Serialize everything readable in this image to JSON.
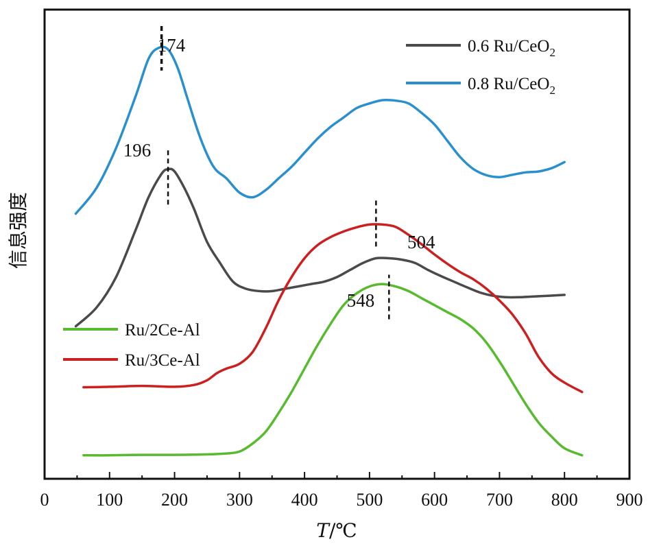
{
  "chart_data": {
    "type": "line",
    "xlabel": "T/℃",
    "ylabel": "信息强度",
    "xlim": [
      0,
      900
    ],
    "xticks": [
      0,
      100,
      200,
      300,
      400,
      500,
      600,
      700,
      800,
      900
    ],
    "y_ticks_shown": false,
    "grid": false,
    "legends": [
      {
        "placement": "top-right",
        "entries": [
          "0.6 Ru/CeO2",
          "0.8 Ru/CeO2"
        ]
      },
      {
        "placement": "center-left",
        "entries": [
          "Ru/2Ce-Al",
          "Ru/3Ce-Al"
        ]
      }
    ],
    "series": [
      {
        "name": "0.8 Ru/CeO2",
        "color": "#2a8fcf",
        "x": [
          48,
          80,
          110,
          140,
          160,
          175,
          190,
          205,
          220,
          240,
          260,
          280,
          300,
          320,
          340,
          360,
          380,
          400,
          420,
          440,
          460,
          480,
          500,
          520,
          540,
          560,
          580,
          600,
          620,
          640,
          660,
          680,
          700,
          720,
          740,
          760,
          780,
          800
        ],
        "y": [
          0.565,
          0.62,
          0.705,
          0.815,
          0.895,
          0.918,
          0.915,
          0.875,
          0.81,
          0.725,
          0.665,
          0.64,
          0.61,
          0.6,
          0.615,
          0.64,
          0.665,
          0.695,
          0.725,
          0.75,
          0.77,
          0.79,
          0.8,
          0.807,
          0.806,
          0.8,
          0.78,
          0.755,
          0.72,
          0.685,
          0.66,
          0.647,
          0.643,
          0.648,
          0.653,
          0.655,
          0.662,
          0.675
        ]
      },
      {
        "name": "0.6 Ru/CeO2",
        "color": "#4a4a4a",
        "x": [
          48,
          80,
          110,
          140,
          160,
          180,
          190,
          200,
          215,
          230,
          250,
          270,
          290,
          310,
          330,
          350,
          370,
          390,
          410,
          430,
          450,
          470,
          490,
          510,
          530,
          550,
          570,
          590,
          610,
          630,
          650,
          670,
          690,
          710,
          730,
          760,
          800
        ],
        "y": [
          0.325,
          0.365,
          0.43,
          0.53,
          0.6,
          0.65,
          0.66,
          0.655,
          0.62,
          0.575,
          0.505,
          0.46,
          0.42,
          0.405,
          0.4,
          0.4,
          0.405,
          0.41,
          0.415,
          0.42,
          0.43,
          0.445,
          0.46,
          0.47,
          0.47,
          0.467,
          0.46,
          0.445,
          0.432,
          0.42,
          0.408,
          0.397,
          0.39,
          0.387,
          0.387,
          0.389,
          0.392
        ]
      },
      {
        "name": "Ru/3Ce-Al",
        "color": "#cc1f1f",
        "x": [
          60,
          100,
          150,
          200,
          230,
          250,
          265,
          280,
          300,
          320,
          340,
          360,
          380,
          400,
          420,
          440,
          460,
          480,
          500,
          520,
          540,
          560,
          580,
          600,
          620,
          640,
          660,
          680,
          700,
          720,
          740,
          760,
          780,
          800,
          827
        ],
        "y": [
          0.195,
          0.196,
          0.198,
          0.196,
          0.2,
          0.21,
          0.225,
          0.235,
          0.245,
          0.27,
          0.32,
          0.38,
          0.43,
          0.47,
          0.498,
          0.515,
          0.527,
          0.536,
          0.542,
          0.542,
          0.537,
          0.52,
          0.5,
          0.478,
          0.458,
          0.44,
          0.425,
          0.405,
          0.38,
          0.35,
          0.31,
          0.26,
          0.225,
          0.205,
          0.185
        ]
      },
      {
        "name": "Ru/2Ce-Al",
        "color": "#58ba2e",
        "x": [
          60,
          100,
          150,
          200,
          250,
          280,
          300,
          320,
          340,
          360,
          380,
          400,
          420,
          440,
          460,
          480,
          500,
          520,
          540,
          560,
          580,
          600,
          620,
          640,
          660,
          680,
          700,
          720,
          740,
          760,
          780,
          800,
          827
        ],
        "y": [
          0.05,
          0.05,
          0.051,
          0.051,
          0.052,
          0.054,
          0.058,
          0.075,
          0.1,
          0.14,
          0.185,
          0.235,
          0.285,
          0.33,
          0.37,
          0.395,
          0.41,
          0.415,
          0.41,
          0.4,
          0.385,
          0.37,
          0.355,
          0.34,
          0.32,
          0.29,
          0.25,
          0.205,
          0.16,
          0.12,
          0.09,
          0.065,
          0.05
        ]
      }
    ],
    "annotations": [
      {
        "text": "174",
        "x": 180,
        "y_top": 0.965,
        "y_bottom": 0.87
      },
      {
        "text": "196",
        "x": 190,
        "y_top": 0.7,
        "y_bottom": 0.58
      },
      {
        "text": "504",
        "x": 510,
        "y_top": 0.495,
        "y_bottom": 0.595
      },
      {
        "text": "548",
        "x": 530,
        "y_top": 0.34,
        "y_bottom": 0.435
      }
    ]
  }
}
